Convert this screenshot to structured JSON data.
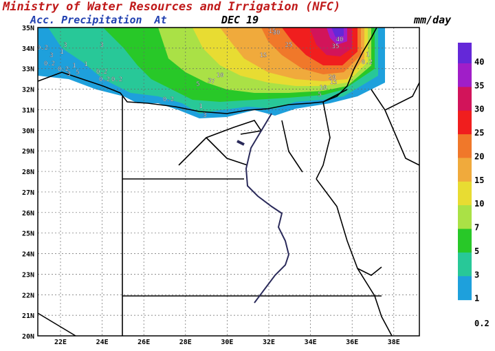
{
  "header": {
    "title": "Ministry of Water Resources and Irrigation (NFC)",
    "subtitle": "Acc. Precipitation  At",
    "date": "DEC 19",
    "units": "mm/day"
  },
  "map": {
    "lat_ticks": [
      "35N",
      "34N",
      "33N",
      "32N",
      "31N",
      "30N",
      "29N",
      "28N",
      "27N",
      "26N",
      "25N",
      "24N",
      "23N",
      "22N",
      "21N",
      "20N"
    ],
    "lon_ticks": [
      "22E",
      "24E",
      "26E",
      "28E",
      "30E",
      "32E",
      "34E",
      "36E",
      "38E"
    ],
    "contour_labels": [
      "0.2",
      "3",
      "1",
      "3",
      "0.2",
      "0.2",
      "1",
      "5",
      "3",
      "1",
      "0.2",
      "3",
      "0.2",
      "0.2",
      "5",
      "3",
      "7",
      "10",
      "15",
      "25",
      "15",
      "30",
      "40",
      "35",
      "20",
      "15",
      "10",
      "5",
      "1",
      "0.2",
      "0.2",
      "1",
      "3"
    ]
  },
  "legend": {
    "levels": [
      40,
      35,
      30,
      25,
      20,
      15,
      10,
      7,
      5,
      3,
      1,
      0.2
    ],
    "colors": [
      "#6428d8",
      "#a01ec8",
      "#d2145a",
      "#f01e1e",
      "#f0782a",
      "#f0aa3c",
      "#e8dc32",
      "#aae146",
      "#28c828",
      "#28c898",
      "#1ea0dc",
      "#1ea0dc"
    ]
  }
}
